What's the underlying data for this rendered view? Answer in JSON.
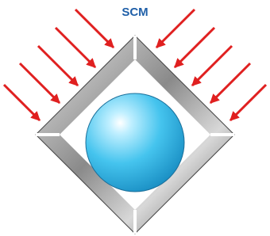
{
  "title": "SCM"
}
